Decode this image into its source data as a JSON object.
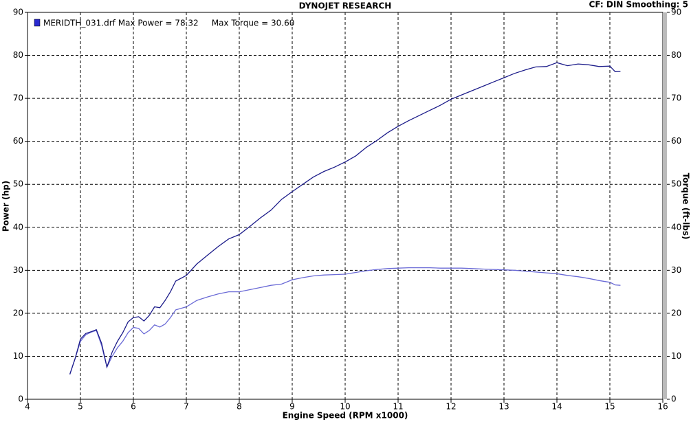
{
  "chart_data": {
    "type": "line",
    "title": "DYNOJET RESEARCH",
    "subtitle": "CF: DIN  Smoothing: 5",
    "legend": "MERIDTH_031.drf Max Power = 78.32     Max Torque = 30.60",
    "x_label": "Engine Speed (RPM x1000)",
    "y_label": "Power (hp)",
    "y2_label": "Torque (ft-lbs)",
    "x": [
      4.8,
      4.9,
      5.0,
      5.1,
      5.2,
      5.3,
      5.4,
      5.5,
      5.6,
      5.7,
      5.8,
      5.9,
      6.0,
      6.1,
      6.2,
      6.3,
      6.4,
      6.5,
      6.6,
      6.7,
      6.8,
      7.0,
      7.2,
      7.4,
      7.6,
      7.8,
      8.0,
      8.2,
      8.4,
      8.6,
      8.8,
      9.0,
      9.2,
      9.4,
      9.6,
      9.8,
      10.0,
      10.2,
      10.4,
      10.6,
      10.8,
      11.0,
      11.2,
      11.4,
      11.6,
      11.8,
      12.0,
      12.2,
      12.4,
      12.6,
      12.8,
      13.0,
      13.2,
      13.4,
      13.6,
      13.8,
      14.0,
      14.2,
      14.4,
      14.6,
      14.8,
      15.0,
      15.1,
      15.2
    ],
    "series": [
      {
        "color": "#1c1c8a",
        "values": [
          5.8,
          9.5,
          14,
          15.3,
          15.7,
          16.2,
          13,
          7.5,
          11,
          13.5,
          15.5,
          18,
          19,
          19.2,
          18.2,
          19.5,
          21.5,
          21.3,
          23,
          25,
          27.5,
          28.8,
          31.5,
          33.5,
          35.5,
          37.3,
          38.3,
          40.2,
          42.2,
          44,
          46.5,
          48.3,
          50,
          51.7,
          53,
          54,
          55.2,
          56.6,
          58.6,
          60.2,
          62,
          63.5,
          64.8,
          66,
          67.2,
          68.4,
          69.8,
          70.8,
          71.8,
          72.8,
          73.8,
          74.8,
          75.8,
          76.6,
          77.3,
          77.4,
          78.3,
          77.6,
          78,
          77.8,
          77.4,
          77.5,
          76.2,
          76.3
        ]
      },
      {
        "color": "#6a6ad6",
        "axis": "y2",
        "values": [
          5.8,
          9.5,
          13.5,
          15,
          15.6,
          16,
          12.5,
          7.5,
          10,
          12,
          13.5,
          15.5,
          16.7,
          16.5,
          15.2,
          16,
          17.3,
          16.8,
          17.5,
          19,
          20.8,
          21.5,
          23,
          23.8,
          24.5,
          25,
          25,
          25.5,
          26,
          26.5,
          26.8,
          27.8,
          28.3,
          28.7,
          28.9,
          29,
          29.1,
          29.5,
          29.9,
          30.2,
          30.4,
          30.5,
          30.6,
          30.6,
          30.6,
          30.5,
          30.5,
          30.5,
          30.4,
          30.3,
          30.2,
          30.1,
          30,
          29.8,
          29.6,
          29.4,
          29.2,
          28.8,
          28.5,
          28.1,
          27.6,
          27.2,
          26.6,
          26.5
        ]
      }
    ],
    "xlim": [
      4,
      16
    ],
    "xticks": [
      4,
      5,
      6,
      7,
      8,
      9,
      10,
      11,
      12,
      13,
      14,
      15,
      16
    ],
    "ylim": [
      0,
      90
    ],
    "yticks": [
      0,
      10,
      20,
      30,
      40,
      50,
      60,
      70,
      80,
      90
    ],
    "y2lim": [
      0,
      90
    ],
    "y2ticks": [
      0,
      10,
      20,
      30,
      40,
      50,
      60,
      70,
      80,
      90
    ],
    "grid": true
  }
}
